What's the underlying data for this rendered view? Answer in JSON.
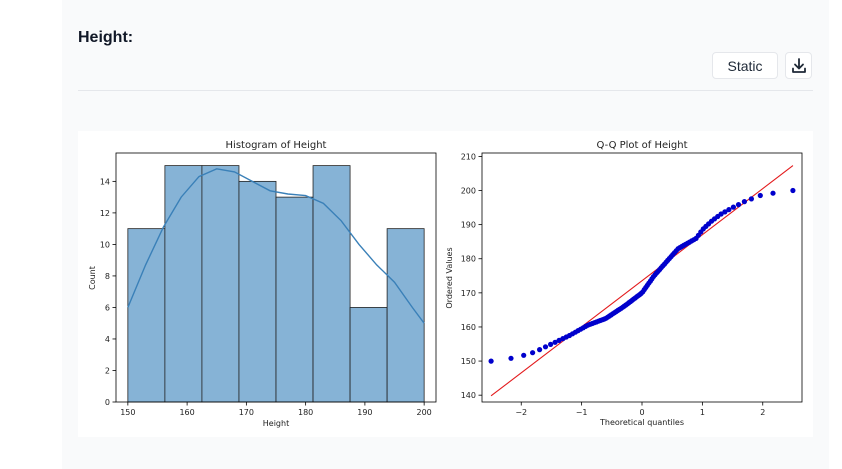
{
  "section": {
    "title": "Height:"
  },
  "toolbar": {
    "static_label": "Static",
    "download_icon": "download-icon"
  },
  "chart_data": [
    {
      "type": "bar",
      "title": "Histogram of Height",
      "xlabel": "Height",
      "ylabel": "Count",
      "bin_edges": [
        150,
        156.25,
        162.5,
        168.75,
        175,
        181.25,
        187.5,
        193.75,
        200
      ],
      "values": [
        11,
        15,
        15,
        14,
        13,
        15,
        6,
        11
      ],
      "kde": {
        "x": [
          150,
          153,
          156,
          159,
          162,
          165,
          168,
          171,
          174,
          177,
          180,
          183,
          186,
          189,
          192,
          195,
          198,
          200
        ],
        "y": [
          6.0,
          8.7,
          11.1,
          13.0,
          14.3,
          14.8,
          14.6,
          14.0,
          13.4,
          13.2,
          13.1,
          12.6,
          11.5,
          10.0,
          8.7,
          7.6,
          6.0,
          5.0
        ]
      },
      "xlim": [
        148,
        202
      ],
      "ylim": [
        0,
        15.8
      ],
      "xticks": [
        150,
        160,
        170,
        180,
        190,
        200
      ],
      "yticks": [
        0,
        2,
        4,
        6,
        8,
        10,
        12,
        14
      ],
      "bar_color": "#86b3d6",
      "kde_color": "#3a80b8",
      "grid": false,
      "legend": "none"
    },
    {
      "type": "scatter",
      "title": "Q-Q Plot of Height",
      "xlabel": "Theoretical quantiles",
      "ylabel": "Ordered Values",
      "xlim": [
        -2.65,
        2.65
      ],
      "ylim": [
        138,
        211
      ],
      "xticks": [
        -2,
        -1,
        0,
        1,
        2
      ],
      "xtick_labels": [
        "−2",
        "−1",
        "0",
        "1",
        "2"
      ],
      "yticks": [
        140,
        150,
        160,
        170,
        180,
        190,
        200,
        210
      ],
      "fit_line": {
        "x": [
          -2.5,
          2.5
        ],
        "y": [
          139.8,
          207.3
        ],
        "color": "#e31a1c"
      },
      "point_color": "#0000cc",
      "knots": [
        [
          -2.5,
          150
        ],
        [
          -2.1,
          151
        ],
        [
          -1.8,
          152.5
        ],
        [
          -1.5,
          155
        ],
        [
          -1.2,
          157.5
        ],
        [
          -0.9,
          160.5
        ],
        [
          -0.6,
          162.5
        ],
        [
          -0.3,
          166
        ],
        [
          0.0,
          170
        ],
        [
          0.2,
          175
        ],
        [
          0.4,
          179
        ],
        [
          0.6,
          183
        ],
        [
          0.9,
          186
        ],
        [
          1.0,
          188.5
        ],
        [
          1.15,
          191
        ],
        [
          1.3,
          193
        ],
        [
          1.5,
          195
        ],
        [
          1.7,
          196.8
        ],
        [
          2.0,
          198.8
        ],
        [
          2.5,
          200
        ]
      ],
      "grid": false,
      "legend": "none"
    }
  ]
}
